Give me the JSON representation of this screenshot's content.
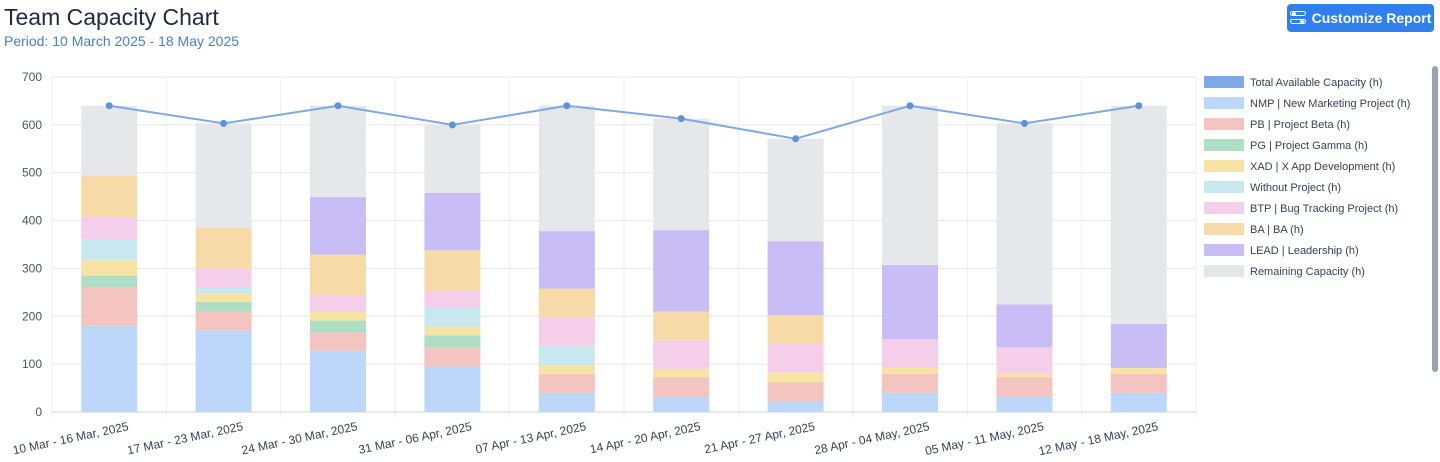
{
  "header": {
    "title": "Team Capacity Chart",
    "period": "Period: 10 March 2025 - 18 May 2025",
    "customize_label": "Customize Report",
    "customize_icon": "sliders-icon"
  },
  "chart_data": {
    "type": "bar",
    "stacked": true,
    "title": "",
    "xlabel": "",
    "ylabel": "",
    "ylim": [
      0,
      700
    ],
    "yticks": [
      0,
      100,
      200,
      300,
      400,
      500,
      600,
      700
    ],
    "grid": true,
    "legend_position": "right",
    "categories": [
      "10 Mar - 16 Mar, 2025",
      "17 Mar - 23 Mar, 2025",
      "24 Mar - 30 Mar, 2025",
      "31 Mar - 06 Apr, 2025",
      "07 Apr - 13 Apr, 2025",
      "14 Apr - 20 Apr, 2025",
      "21 Apr - 27 Apr, 2025",
      "28 Apr - 04 May, 2025",
      "05 May - 11 May, 2025",
      "12 May - 18 May, 2025"
    ],
    "line_series": {
      "name": "Total Available Capacity (h)",
      "color": "#7fa9e0",
      "values": [
        640,
        603,
        640,
        600,
        640,
        613,
        571,
        640,
        603,
        640
      ]
    },
    "series": [
      {
        "name": "NMP | New Marketing Project  (h)",
        "color": "#bcd7f9",
        "values": [
          180,
          170,
          128,
          95,
          40,
          32,
          22,
          40,
          32,
          40
        ]
      },
      {
        "name": "PB | Project Beta (h)",
        "color": "#f4c4c1",
        "values": [
          80,
          40,
          38,
          40,
          40,
          40,
          40,
          40,
          40,
          40
        ]
      },
      {
        "name": "PG | Project Gamma  (h)",
        "color": "#aedfc5",
        "values": [
          25,
          20,
          25,
          25,
          0,
          0,
          0,
          0,
          0,
          0
        ]
      },
      {
        "name": "XAD | X App Development (h)",
        "color": "#f7e3a3",
        "values": [
          32,
          18,
          18,
          18,
          18,
          18,
          20,
          12,
          8,
          12
        ]
      },
      {
        "name": "Without Project (h)",
        "color": "#c7e8ee",
        "values": [
          43,
          12,
          0,
          40,
          40,
          0,
          0,
          0,
          0,
          0
        ]
      },
      {
        "name": "BTP | Bug Tracking Project (h)",
        "color": "#f5cfe9",
        "values": [
          48,
          40,
          35,
          35,
          60,
          60,
          60,
          60,
          55,
          0
        ]
      },
      {
        "name": "BA | BA (h)",
        "color": "#f6dba9",
        "values": [
          85,
          85,
          85,
          85,
          60,
          60,
          60,
          0,
          0,
          0
        ]
      },
      {
        "name": "LEAD | Leadership (h)",
        "color": "#c8bdf5",
        "values": [
          0,
          0,
          120,
          120,
          120,
          170,
          155,
          155,
          90,
          92
        ]
      },
      {
        "name": "Remaining Capacity (h)",
        "color": "#e5e7eb",
        "values": [
          147,
          218,
          191,
          142,
          262,
          233,
          214,
          333,
          378,
          456
        ]
      }
    ]
  }
}
